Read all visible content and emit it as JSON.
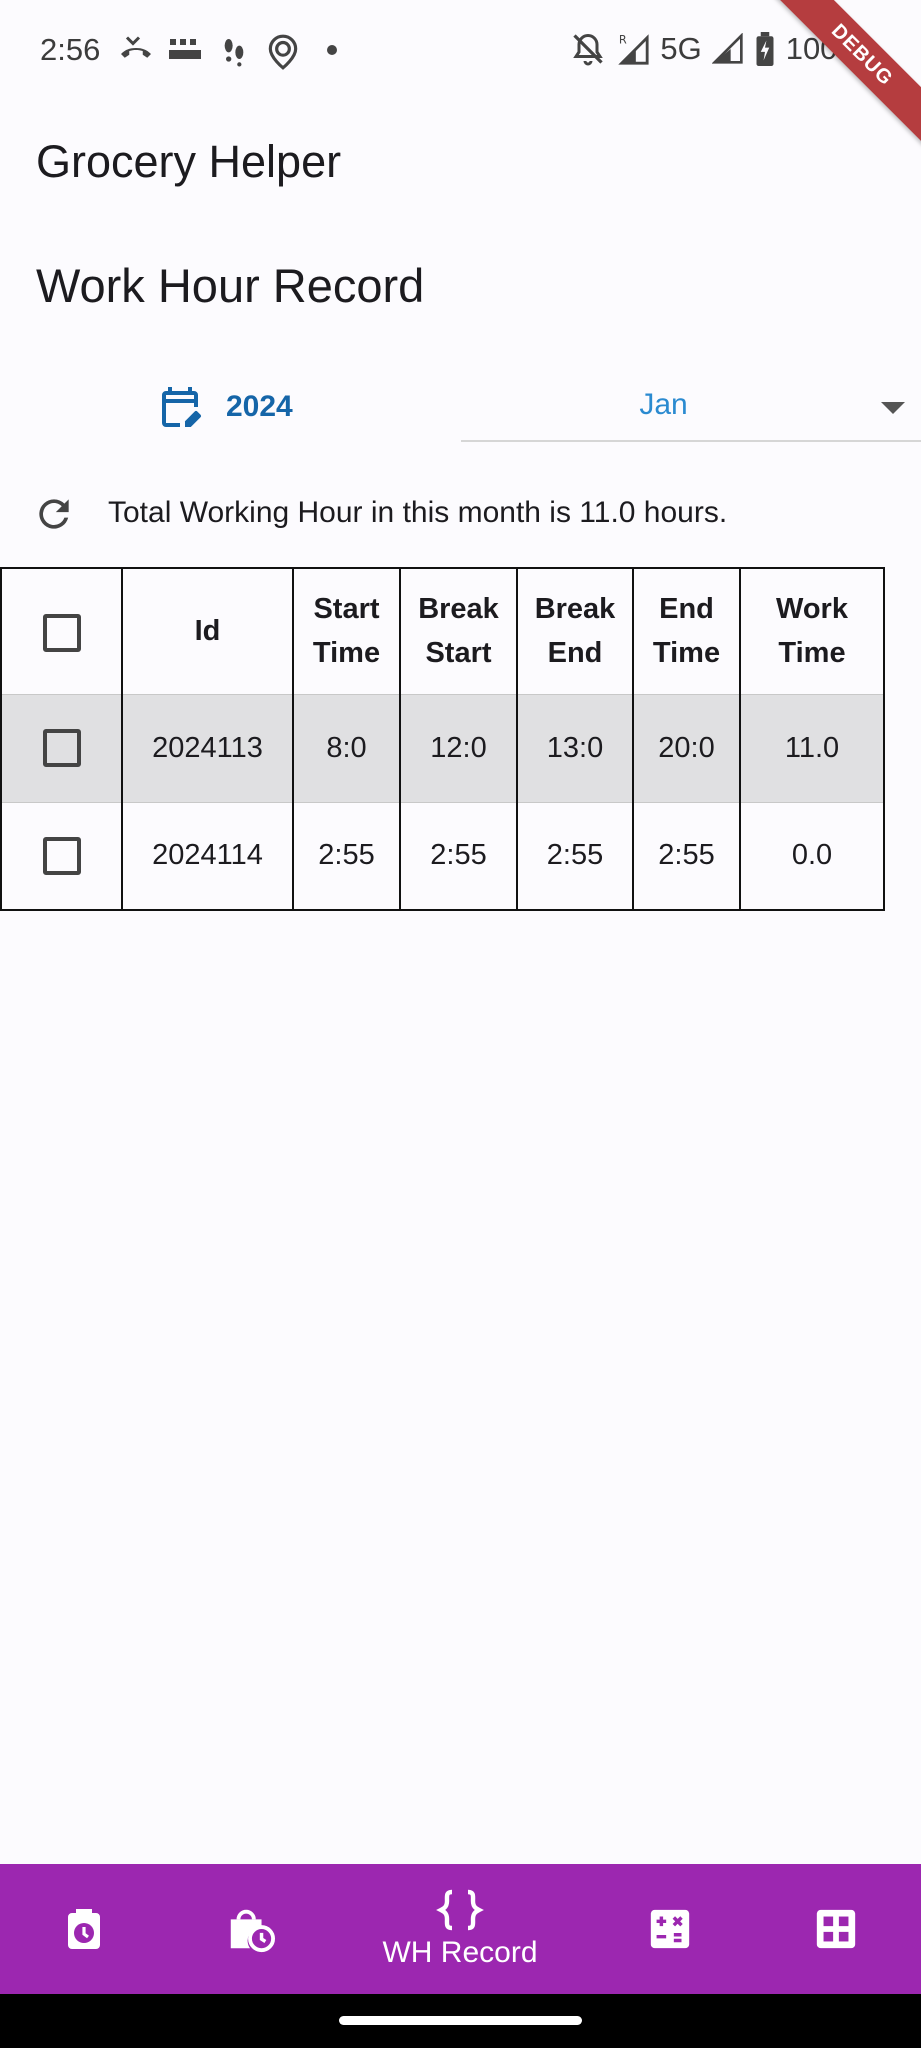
{
  "status_bar": {
    "time": "2:56",
    "network": "5G",
    "battery": "100%",
    "icons": [
      "missed-call-icon",
      "temu-icon",
      "footsteps-icon",
      "map-pin-icon",
      "dot-icon",
      "mute-bell-icon",
      "signal-r-icon",
      "signal-icon",
      "battery-charging-icon"
    ]
  },
  "debug_banner": "DEBUG",
  "app": {
    "title": "Grocery Helper"
  },
  "page": {
    "title": "Work Hour Record"
  },
  "filters": {
    "year": "2024",
    "year_icon": "calendar-edit-icon",
    "month": "Jan"
  },
  "summary": {
    "refresh_icon": "refresh-icon",
    "text": "Total Working Hour in this month is 11.0 hours."
  },
  "table": {
    "headers": [
      {
        "line1": "Id",
        "line2": ""
      },
      {
        "line1": "Start",
        "line2": "Time"
      },
      {
        "line1": "Break",
        "line2": "Start"
      },
      {
        "line1": "Break",
        "line2": "End"
      },
      {
        "line1": "End",
        "line2": "Time"
      },
      {
        "line1": "Work",
        "line2": "Time"
      }
    ],
    "rows": [
      {
        "id": "2024113",
        "start": "8:0",
        "break_start": "12:0",
        "break_end": "13:0",
        "end": "20:0",
        "work": "11.0",
        "selected": true
      },
      {
        "id": "2024114",
        "start": "2:55",
        "break_start": "2:55",
        "break_end": "2:55",
        "end": "2:55",
        "work": "0.0",
        "selected": false
      }
    ]
  },
  "bottom_nav": {
    "accent": "#9c27b0",
    "items": [
      {
        "icon": "timer-icon"
      },
      {
        "icon": "bag-clock-icon"
      },
      {
        "icon": "braces-icon",
        "label": "WH Record"
      },
      {
        "icon": "calculator-icon"
      },
      {
        "icon": "grid-icon"
      }
    ]
  }
}
